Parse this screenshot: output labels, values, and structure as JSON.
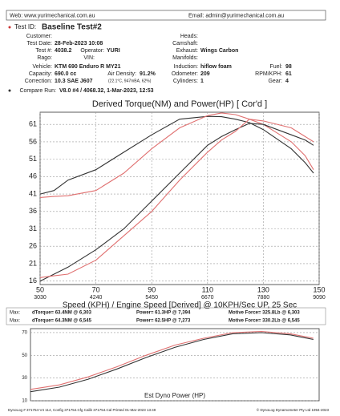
{
  "header": {
    "web": "Web: www.yurimechanical.com.au",
    "email": "Email: admin@yurimechanical.com.au",
    "test_id_label": "Test ID:",
    "test_id": "Baseline Test#2"
  },
  "fields": [
    {
      "label": "Customer:"
    },
    {
      "label": "Heads:"
    },
    {
      "label": "Test Date:",
      "value": "28-Feb-2023 10:08"
    },
    {
      "label": "Camshaft:"
    },
    {
      "label": "Test #:",
      "value": "4038.2"
    },
    {
      "label": "Operator:",
      "value": "YURI"
    },
    {
      "label": "Exhaust:",
      "value": "Wings Carbon"
    },
    {
      "label": "Rago:"
    },
    {
      "label": "VIN:"
    },
    {
      "label": "Manifolds:"
    },
    {
      "label": "Vehicle:",
      "value": "KTM 690 Enduro R MY21"
    },
    {
      "label": "Induction:",
      "value": "hiflow foam"
    },
    {
      "label": "Fuel:",
      "value": "98"
    },
    {
      "label": "Capacity:",
      "value": "690.0 cc"
    },
    {
      "label": "Air Density:",
      "value": "91.2%"
    },
    {
      "label": "Odometer:",
      "value": "209"
    },
    {
      "label": "RPM/KPH:",
      "value": "61"
    },
    {
      "label": "Correction:",
      "value": "10.3 SAE J607"
    },
    {
      "label": "Cylinders:",
      "value": "1"
    },
    {
      "label": "Gear:",
      "value": "4"
    }
  ],
  "correction_conditions": "(22.1°C, 947mBA, 62%)",
  "compare_run": {
    "label": "Compare Run:",
    "value": "V8.0 #4 / 4068.32,  1-Mar-2023,  12:53"
  },
  "max_rows": [
    {
      "label": "Max:",
      "items": [
        "dTorque= 63.4NM @ 6,303",
        "Power= 61.3HP @ 7,394",
        "Motive Force= 325.8Lb @ 6,303"
      ]
    },
    {
      "label": "Max:",
      "items": [
        "dTorque= 64.3NM @ 6,545",
        "Power= 62.5HP @ 7,273",
        "Motive Force= 330.2Lb @ 6,545"
      ]
    }
  ],
  "footer": {
    "left": "DynoLog # 371754-V4 114, Config 371754.Cfg  Calib 371754.Cal  Printed 01-Mar-2023 13:49",
    "right": "© DynoLog Dynamometer Pty Ltd 1994-2023"
  },
  "chart_data": [
    {
      "type": "line",
      "title": "Derived Torque(NM) and Power(HP)   [ Cor'd ]",
      "x_label": "Speed (KPH) / Engine Speed [Derived] @ 10KPH/Sec UP, 25 Sec",
      "x": [
        50,
        55,
        60,
        70,
        80,
        90,
        100,
        110,
        115,
        120,
        125,
        130,
        140,
        145,
        148
      ],
      "xlim": [
        50,
        150
      ],
      "xticks": [
        50,
        70,
        90,
        110,
        130,
        150
      ],
      "x2tick_labels": [
        "3030",
        "4240",
        "5450",
        "6670",
        "7880",
        "9090"
      ],
      "ylim": [
        15,
        64.5
      ],
      "yticks": [
        16,
        21,
        26,
        31,
        36,
        41,
        46,
        51,
        56,
        61
      ],
      "grid": true,
      "series": [
        {
          "color": "#333333",
          "values": [
            41,
            42,
            45,
            48,
            53,
            58,
            62.5,
            63.3,
            63.2,
            62.5,
            61.5,
            59.5,
            54,
            50,
            47
          ]
        },
        {
          "color": "#e07070",
          "values": [
            40,
            40.3,
            40.5,
            42,
            47,
            54,
            60,
            63.5,
            64.3,
            63.8,
            62.5,
            61,
            56,
            52,
            48
          ]
        },
        {
          "color": "#333333",
          "values": [
            16,
            18,
            20,
            25,
            31,
            39,
            47,
            55,
            57.5,
            59.5,
            61.3,
            61,
            58,
            56.5,
            55
          ]
        },
        {
          "color": "#e07070",
          "values": [
            17,
            17.5,
            18,
            22,
            29,
            36,
            45,
            53,
            56.5,
            59,
            62.5,
            62,
            60,
            57.5,
            56
          ]
        }
      ]
    },
    {
      "type": "line",
      "title": "Est Dyno Power (HP)",
      "x": [
        50,
        60,
        70,
        80,
        90,
        100,
        110,
        120,
        130,
        140,
        148
      ],
      "xlim": [
        50,
        150
      ],
      "ylim": [
        10,
        73.5
      ],
      "yticks": [
        10,
        30,
        50,
        70
      ],
      "grid": true,
      "series": [
        {
          "color": "#333333",
          "values": [
            18,
            22,
            29,
            38,
            48,
            57,
            64,
            69,
            70,
            68,
            64
          ]
        },
        {
          "color": "#e07070",
          "values": [
            20,
            24,
            31,
            40,
            50,
            59,
            65,
            70,
            71,
            69,
            65
          ]
        }
      ]
    }
  ]
}
